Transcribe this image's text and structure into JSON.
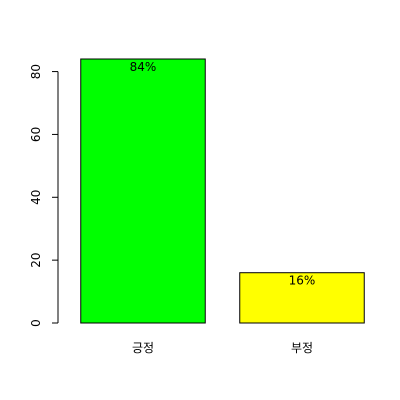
{
  "chart_data": {
    "type": "bar",
    "title": "",
    "xlabel": "",
    "ylabel": "",
    "categories": [
      "긍정",
      "부정"
    ],
    "values": [
      84,
      16
    ],
    "data_labels": [
      "84%",
      "16%"
    ],
    "bar_colors": [
      "#00ff00",
      "#ffff00"
    ],
    "ylim": [
      0,
      84
    ],
    "yticks": [
      0,
      20,
      40,
      60,
      80
    ],
    "grid": false,
    "legend": "none"
  }
}
